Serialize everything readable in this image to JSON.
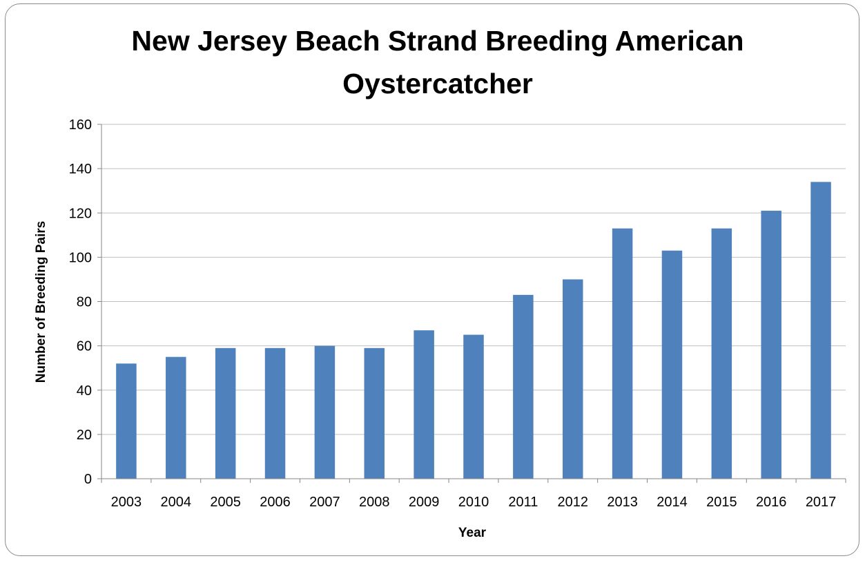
{
  "chart_data": {
    "type": "bar",
    "title_lines": [
      "New Jersey Beach Strand Breeding American",
      "Oystercatcher"
    ],
    "xlabel": "Year",
    "ylabel": "Number of Breeding Pairs",
    "categories": [
      "2003",
      "2004",
      "2005",
      "2006",
      "2007",
      "2008",
      "2009",
      "2010",
      "2011",
      "2012",
      "2013",
      "2014",
      "2015",
      "2016",
      "2017"
    ],
    "values": [
      52,
      55,
      59,
      59,
      60,
      59,
      67,
      65,
      83,
      90,
      113,
      103,
      113,
      121,
      134
    ],
    "ylim": [
      0,
      160
    ],
    "yticks": [
      "0",
      "20",
      "40",
      "60",
      "80",
      "100",
      "120",
      "140",
      "160"
    ],
    "grid": true,
    "legend": "none",
    "colors": {
      "bar": "#4f81bd",
      "grid": "#bfbfbf",
      "axis": "#868686"
    }
  }
}
